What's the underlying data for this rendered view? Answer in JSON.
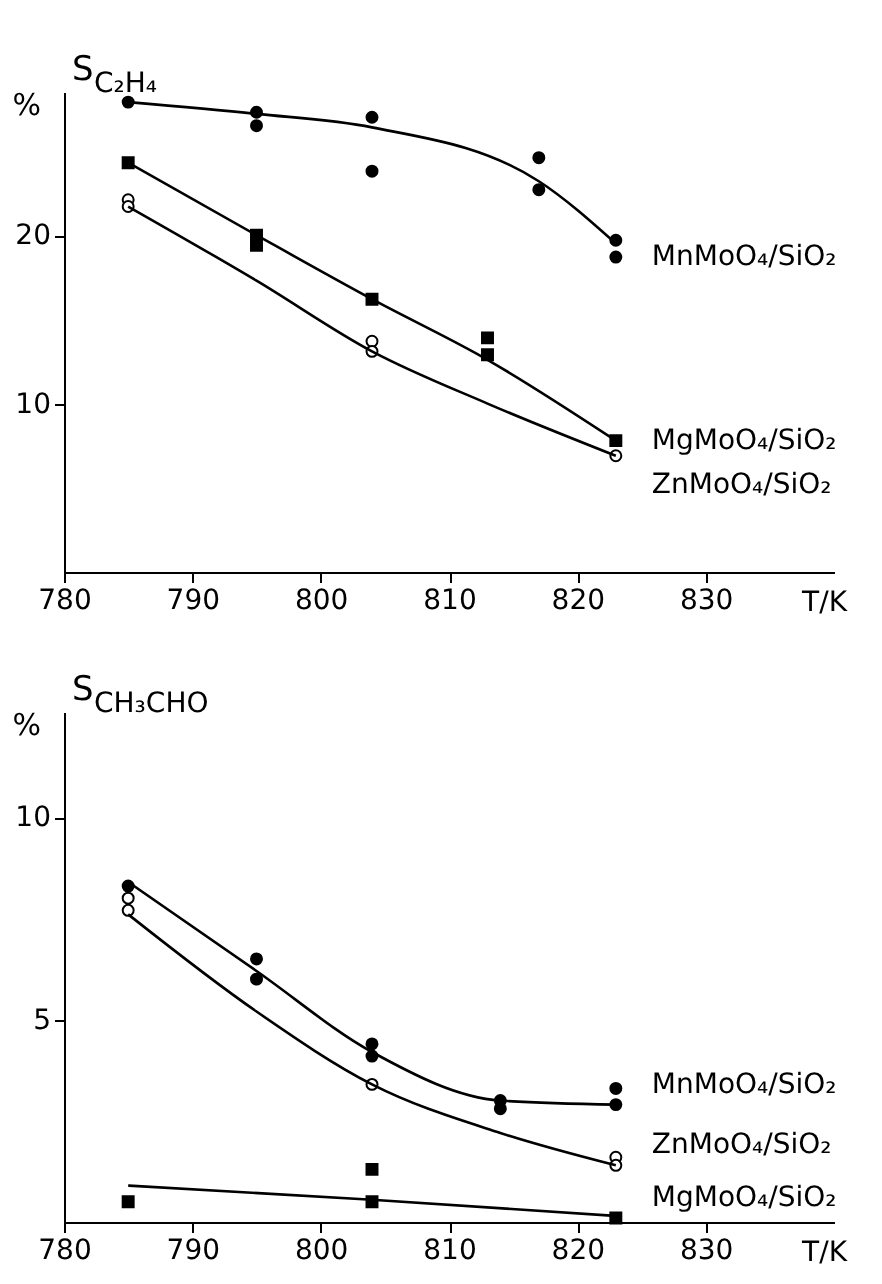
{
  "chart_data": [
    {
      "type": "scatter",
      "title": "S$_{C₂H₄}$",
      "ylabel": "%",
      "xlabel": "T/K",
      "xlim": [
        780,
        840
      ],
      "xticks": [
        780,
        790,
        800,
        810,
        820,
        830
      ],
      "ylim": [
        0,
        28.5
      ],
      "yticks": [
        10,
        20
      ],
      "grid": false,
      "series": [
        {
          "name": "MnMoO₄/SiO₂",
          "color": "#000000",
          "marker": "circle",
          "x": [
            785,
            795,
            795,
            804,
            804,
            817,
            817,
            823,
            823
          ],
          "values": [
            27.9,
            27.3,
            26.5,
            27.0,
            23.8,
            24.6,
            22.7,
            19.7,
            18.7
          ]
        },
        {
          "name": "MgMoO₄/SiO₂",
          "color": "#000000",
          "marker": "square",
          "x": [
            785,
            795,
            795,
            804,
            813,
            813,
            823
          ],
          "values": [
            24.3,
            20.0,
            19.4,
            16.2,
            13.9,
            12.9,
            7.8
          ]
        },
        {
          "name": "ZnMoO₄/SiO₂",
          "color": "#ffffff",
          "marker": "circle",
          "x": [
            785,
            785,
            804,
            804,
            823
          ],
          "values": [
            22.1,
            21.7,
            13.7,
            13.1,
            6.9
          ]
        },
        {
          "type": "line",
          "color": "#000000",
          "marker": "none",
          "line_style": "solid",
          "x": [
            785,
            795,
            804,
            817,
            823
          ],
          "values": [
            27.9,
            27.2,
            26.4,
            23.2,
            19.5
          ]
        },
        {
          "type": "line",
          "color": "#000000",
          "marker": "none",
          "line_style": "solid",
          "x": [
            785,
            795,
            804,
            813,
            823
          ],
          "values": [
            24.3,
            20.0,
            16.2,
            12.6,
            7.8
          ]
        },
        {
          "type": "line",
          "color": "#000000",
          "marker": "none",
          "line_style": "solid",
          "x": [
            785,
            795,
            804,
            813,
            823
          ],
          "values": [
            21.7,
            17.3,
            13.1,
            10.0,
            6.9
          ]
        }
      ]
    },
    {
      "type": "scatter",
      "title": "S$_{CH₃CHO}$",
      "ylabel": "%",
      "xlabel": "T/K",
      "xlim": [
        780,
        840
      ],
      "xticks": [
        780,
        790,
        800,
        810,
        820,
        830
      ],
      "ylim": [
        0,
        12.6
      ],
      "yticks": [
        5,
        10
      ],
      "grid": false,
      "series": [
        {
          "name": "MnMoO₄/SiO₂",
          "color": "#000000",
          "marker": "circle",
          "x": [
            785,
            795,
            795,
            804,
            804,
            814,
            814,
            823,
            823
          ],
          "values": [
            8.3,
            6.5,
            6.0,
            4.4,
            4.1,
            3.0,
            2.8,
            3.3,
            2.9
          ]
        },
        {
          "name": "ZnMoO₄/SiO₂",
          "color": "#ffffff",
          "marker": "circle",
          "x": [
            785,
            785,
            804,
            823,
            823
          ],
          "values": [
            8.0,
            7.7,
            3.4,
            1.6,
            1.4
          ]
        },
        {
          "name": "MgMoO₄/SiO₂",
          "color": "#000000",
          "marker": "square",
          "x": [
            785,
            804,
            804,
            823
          ],
          "values": [
            0.5,
            1.3,
            0.5,
            0.1
          ]
        },
        {
          "type": "line",
          "color": "#000000",
          "marker": "none",
          "line_style": "solid",
          "x": [
            785,
            795,
            804,
            814,
            823
          ],
          "values": [
            8.4,
            6.2,
            4.2,
            3.0,
            2.9
          ]
        },
        {
          "type": "line",
          "color": "#000000",
          "marker": "none",
          "line_style": "solid",
          "x": [
            785,
            795,
            804,
            814,
            823
          ],
          "values": [
            7.6,
            5.2,
            3.4,
            2.2,
            1.4
          ]
        },
        {
          "type": "line",
          "color": "#000000",
          "marker": "none",
          "line_style": "solid",
          "x": [
            785,
            804,
            823
          ],
          "values": [
            0.9,
            0.55,
            0.15
          ]
        }
      ]
    }
  ]
}
